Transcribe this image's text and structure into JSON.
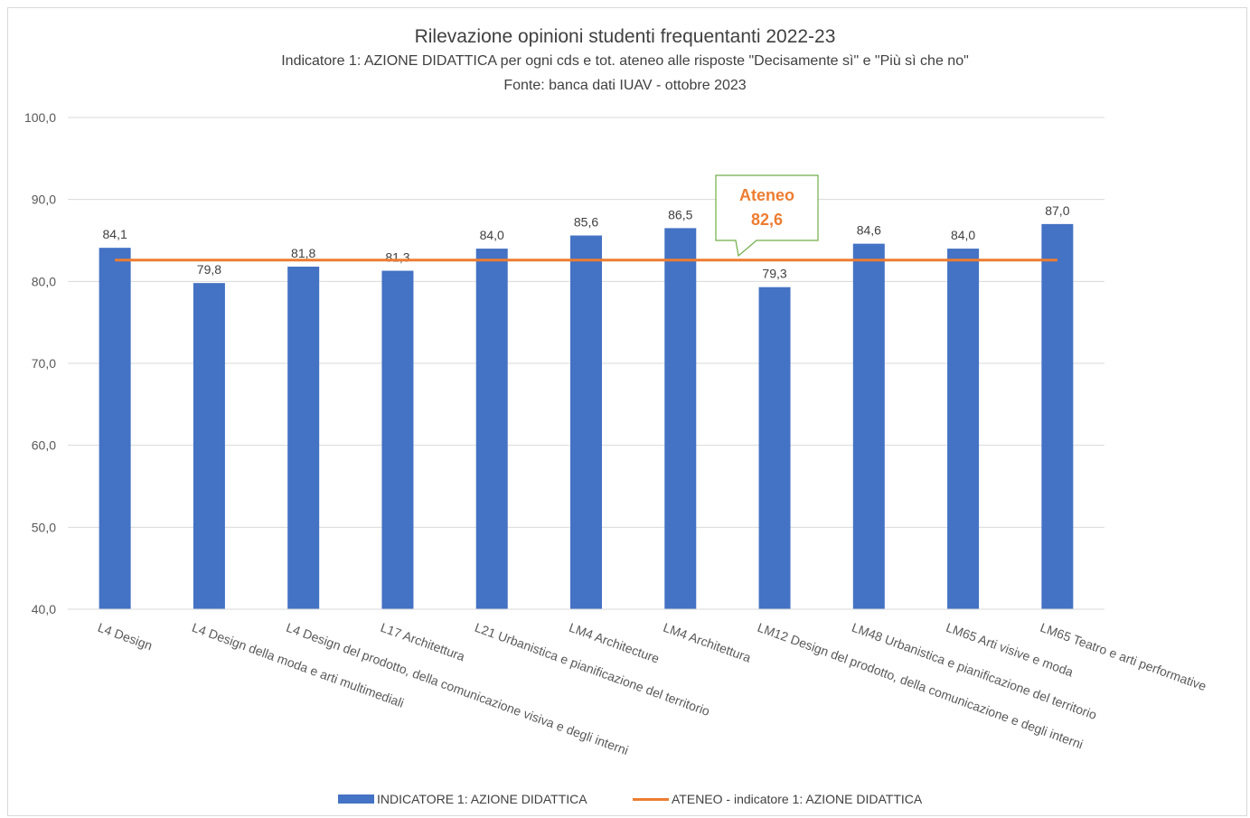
{
  "chart_data": {
    "type": "bar",
    "title": "Rilevazione opinioni studenti frequentanti 2022-23",
    "subtitle": "Indicatore 1: AZIONE DIDATTICA per ogni cds e tot. ateneo alle risposte \"Decisamente sì\" e \"Più sì che no\"",
    "source": "Fonte: banca dati IUAV - ottobre 2023",
    "categories": [
      "L4 Design",
      "L4 Design della moda e arti multimediali",
      "L4 Design del prodotto, della comunicazione visiva e degli interni",
      "L17 Architettura",
      "L21 Urbanistica e pianificazione del territorio",
      "LM4 Architecture",
      "LM4 Architettura",
      "LM12 Design del prodotto, della comunicazione e degli interni",
      "LM48 Urbanistica e pianificazione del territorio",
      "LM65 Arti visive e moda",
      "LM65 Teatro e arti performative"
    ],
    "series": [
      {
        "name": "INDICATORE 1: AZIONE DIDATTICA",
        "type": "bar",
        "color": "#4472c4",
        "values": [
          84.1,
          79.8,
          81.8,
          81.3,
          84.0,
          85.6,
          86.5,
          79.3,
          84.6,
          84.0,
          87.0
        ],
        "value_labels": [
          "84,1",
          "79,8",
          "81,8",
          "81,3",
          "84,0",
          "85,6",
          "86,5",
          "79,3",
          "84,6",
          "84,0",
          "87,0"
        ]
      },
      {
        "name": "ATENEO - indicatore 1: AZIONE DIDATTICA",
        "type": "line",
        "color": "#ed7d31",
        "value": 82.6
      }
    ],
    "ylim": [
      40,
      100
    ],
    "yticks": [
      40,
      50,
      60,
      70,
      80,
      90,
      100
    ],
    "ytick_labels": [
      "40,0",
      "50,0",
      "60,0",
      "70,0",
      "80,0",
      "90,0",
      "100,0"
    ],
    "grid": true,
    "legend_position": "bottom",
    "annotation": {
      "line1": "Ateneo",
      "line2": "82,6",
      "border_color": "#70ad47",
      "text_color": "#ed7d31"
    }
  }
}
